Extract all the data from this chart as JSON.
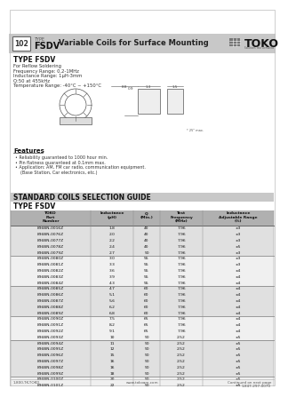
{
  "title_num": "102",
  "title_type": "TYPE",
  "title_name": "FSDV",
  "title_desc": "Variable Coils for Surface Mounting",
  "bg_color": "#ffffff",
  "type_info_title": "TYPE FSDV",
  "type_info": [
    "For Reflow Soldering",
    "Frequency Range: 0.2-1MHz",
    "Inductance Range: 1μH-3mm",
    "Q:50 at 455kHz",
    "Temperature Range: -40°C ~ +150°C"
  ],
  "features_title": "Features",
  "features": [
    "Reliability guaranteed to 1000 hour min.",
    "Pin flatness guaranteed at 0.1mm max.",
    "Application: AM, FM car radio, communication equipment.",
    "(Base Station, Car electronics, etc.)"
  ],
  "guide_title": "STANDARD COILS SELECTION GUIDE",
  "table_title": "TYPE FSDV",
  "col_headers": [
    "TOKO\nPart\nNumber",
    "Inductance\n(μH)",
    "Q\n(Min.)",
    "Test\nFrequency\n(MHz)",
    "Inductance\nAdjustable Range\n(%)"
  ],
  "table_data": [
    [
      "836BN-0016Z",
      "1.8",
      "40",
      "7.96",
      "±3"
    ],
    [
      "836BN-0076Z",
      "2.0",
      "40",
      "7.96",
      "±3"
    ],
    [
      "836BN-0077Z",
      "2.2",
      "40",
      "7.96",
      "±3"
    ],
    [
      "836BN-0078Z",
      "2.4",
      "40",
      "7.96",
      "±5"
    ],
    [
      "836BN-0079Z",
      "2.7",
      "50",
      "7.96",
      "±3"
    ],
    [
      "836BN-0080Z",
      "3.0",
      "55",
      "7.96",
      "±3"
    ],
    [
      "836BN-0081Z",
      "3.3",
      "55",
      "7.96",
      "±3"
    ],
    [
      "836BN-0082Z",
      "3.6",
      "55",
      "7.96",
      "±4"
    ],
    [
      "836BN-0083Z",
      "3.9",
      "55",
      "7.96",
      "±4"
    ],
    [
      "836BN-0084Z",
      "4.3",
      "55",
      "7.96",
      "±4"
    ],
    [
      "836BN-0085Z",
      "4.7",
      "60",
      "7.96",
      "±4"
    ],
    [
      "836BN-0086Z",
      "5.1",
      "60",
      "7.96",
      "±4"
    ],
    [
      "836BN-0087Z",
      "5.6",
      "60",
      "7.96",
      "±4"
    ],
    [
      "836BN-0088Z",
      "6.2",
      "60",
      "7.96",
      "±4"
    ],
    [
      "836BN-0089Z",
      "6.8",
      "60",
      "7.96",
      "±4"
    ],
    [
      "836BN-0090Z",
      "7.5",
      "65",
      "7.96",
      "±4"
    ],
    [
      "836BN-0091Z",
      "8.2",
      "65",
      "7.96",
      "±4"
    ],
    [
      "836BN-0092Z",
      "9.1",
      "65",
      "7.96",
      "±4"
    ],
    [
      "836BN-0093Z",
      "10",
      "50",
      "2.52",
      "±5"
    ],
    [
      "836BN-0094Z",
      "11",
      "50",
      "2.52",
      "±5"
    ],
    [
      "836BN-0095Z",
      "12",
      "50",
      "2.52",
      "±5"
    ],
    [
      "836BN-0096Z",
      "15",
      "50",
      "2.52",
      "±5"
    ],
    [
      "836BN-0097Z",
      "16",
      "50",
      "2.52",
      "±5"
    ],
    [
      "836BN-0098Z",
      "16",
      "50",
      "2.52",
      "±5"
    ],
    [
      "836BN-0099Z",
      "18",
      "50",
      "2.52",
      "±5"
    ],
    [
      "836BN-0100Z",
      "20",
      "50",
      "2.52",
      "±5"
    ],
    [
      "836BN-0101Z",
      "22",
      "50",
      "2.52",
      "±5"
    ]
  ],
  "group_breaks": [
    5,
    10,
    15,
    19,
    25
  ],
  "footer_left": "1-800-TK-TOKO",
  "footer_center": "www.tokoam.com",
  "footer_right_1": "Continued on next page",
  "footer_right_2": "1-847-297-0070",
  "row_colors": [
    "#e0e0e0",
    "#f0f0f0"
  ],
  "header_bar_color": "#b0b0b0",
  "guide_bar_color": "#c8c8c8",
  "top_bar_color": "#c8c8c8"
}
